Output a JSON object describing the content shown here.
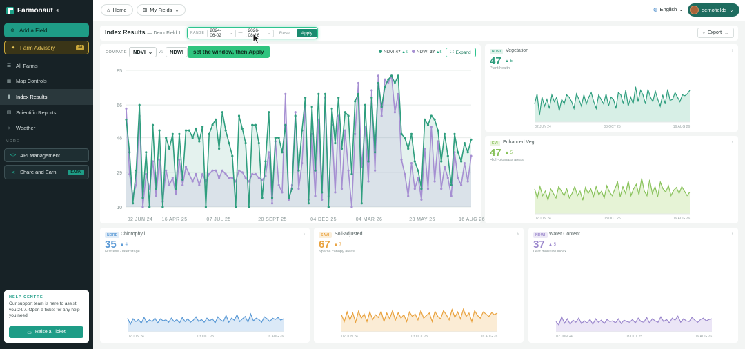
{
  "app": {
    "logo_text": "Farmonaut",
    "logo_sup": "®"
  },
  "sidebar": {
    "add_field": "Add a Field",
    "farm_advisory": "Farm Advisory",
    "ai_badge": "AI",
    "items": [
      {
        "label": "All Farms",
        "icon": "list-icon"
      },
      {
        "label": "Map Controls",
        "icon": "map-icon"
      },
      {
        "label": "Index Results",
        "icon": "bar-chart-icon",
        "active": true
      },
      {
        "label": "Scientific Reports",
        "icon": "document-icon"
      },
      {
        "label": "Weather",
        "icon": "sun-icon"
      }
    ],
    "more_label": "MORE",
    "api_management": "API Management",
    "share_and_earn": "Share and Earn",
    "earn_badge": "EARN",
    "help": {
      "title": "HELP CENTRE",
      "text": "Our support team is here to assist you 24/7. Open a ticket for any help you need.",
      "button": "Raise a Ticket"
    }
  },
  "topbar": {
    "home": "Home",
    "my_fields": "My Fields",
    "language": "English",
    "user": "demofields"
  },
  "header": {
    "title": "Index Results",
    "subtitle": "— DemoField 1",
    "range_label": "RANGE",
    "start_date": "2024-06-02",
    "end_date": "2026-08-16",
    "range_sep": "—",
    "reset": "Reset",
    "apply": "Apply",
    "export": "Export"
  },
  "main_chart": {
    "compare_label": "COMPARE",
    "index_a": "NDVI",
    "vs": "vs",
    "index_b": "NDWI",
    "tooltip": "set the window, then Apply",
    "legend": [
      {
        "name": "NDVI",
        "value": "47",
        "delta": "▲5",
        "color": "#2f9e7e"
      },
      {
        "name": "NDWI",
        "value": "37",
        "delta": "▲5",
        "color": "#a68fd2"
      }
    ],
    "expand": "Expand"
  },
  "chart_data": [
    {
      "type": "line",
      "title": "",
      "ylim": [
        10,
        85
      ],
      "yticks": [
        "85",
        "66",
        "48",
        "29",
        "10"
      ],
      "xticks": [
        "02 JUN 24",
        "16 APR 25",
        "07 JUL 25",
        "20 SEPT 25",
        "04 DEC 25",
        "04 MAR 26",
        "23 MAY 26",
        "16 AUG 26"
      ],
      "grid": true,
      "series": [
        {
          "name": "NDVI",
          "color": "#2f9e7e",
          "values": [
            58,
            40,
            12,
            30,
            66,
            15,
            40,
            10,
            55,
            20,
            52,
            10,
            48,
            42,
            50,
            20,
            50,
            25,
            52,
            52,
            48,
            53,
            46,
            54,
            10,
            50,
            55,
            58,
            42,
            62,
            52,
            45,
            38,
            10,
            60,
            53,
            45,
            10,
            55,
            55,
            45,
            15,
            35,
            62,
            15,
            48,
            48,
            40,
            55,
            15,
            20,
            60,
            30,
            52,
            70,
            12,
            65,
            30,
            72,
            18,
            72,
            10,
            64,
            45,
            70,
            42,
            62,
            60,
            28,
            68,
            72,
            12,
            66,
            35,
            70,
            40,
            78,
            65,
            76,
            80,
            82,
            78,
            82,
            50,
            48,
            42,
            50,
            35,
            30,
            20,
            58,
            55,
            60,
            58,
            52,
            35,
            50,
            38,
            22,
            50,
            40,
            35,
            45,
            40,
            47
          ]
        },
        {
          "name": "NDWI",
          "color": "#a68fd2",
          "values": [
            64,
            28,
            16,
            22,
            60,
            10,
            28,
            20,
            35,
            16,
            36,
            13,
            30,
            22,
            26,
            17,
            36,
            22,
            32,
            28,
            24,
            28,
            22,
            28,
            24,
            28,
            30,
            30,
            26,
            30,
            28,
            26,
            26,
            24,
            30,
            29,
            26,
            24,
            28,
            28,
            26,
            25,
            27,
            40,
            12,
            46,
            22,
            18,
            72,
            14,
            22,
            62,
            20,
            34,
            66,
            14,
            50,
            16,
            58,
            14,
            70,
            16,
            55,
            18,
            60,
            20,
            52,
            30,
            10,
            50,
            78,
            32,
            54,
            24,
            74,
            30,
            82,
            60,
            80,
            78,
            82,
            62,
            72,
            36,
            28,
            16,
            34,
            20,
            26,
            14,
            42,
            20,
            54,
            24,
            46,
            20,
            32,
            26,
            16,
            40,
            26,
            22,
            34,
            24,
            38
          ]
        }
      ]
    },
    {
      "type": "area",
      "title": "Vegetation",
      "xticks": [
        "02 JUN 24",
        "03 OCT 25",
        "16 AUG 26"
      ],
      "series": [
        {
          "name": "NDVI",
          "values": [
            40,
            62,
            15,
            55,
            35,
            50,
            30,
            60,
            45,
            55,
            25,
            50,
            40,
            60,
            55,
            45,
            30,
            62,
            50,
            35,
            60,
            40,
            55,
            65,
            45,
            30,
            60,
            50,
            40,
            62,
            35,
            55,
            50,
            30,
            65,
            60,
            40,
            70,
            35,
            55,
            40,
            78,
            45,
            70,
            60,
            40,
            72,
            55,
            45,
            68,
            50,
            35,
            60,
            40,
            72,
            48,
            50,
            65,
            55,
            45,
            60,
            58,
            62,
            70
          ]
        }
      ]
    },
    {
      "type": "area",
      "title": "Enhanced Veg",
      "xticks": [
        "02 JUN 24",
        "03 OCT 25",
        "16 AUG 26"
      ],
      "series": [
        {
          "name": "EVI",
          "values": [
            55,
            35,
            60,
            40,
            50,
            30,
            55,
            45,
            35,
            60,
            50,
            40,
            55,
            35,
            45,
            60,
            40,
            50,
            30,
            58,
            45,
            55,
            38,
            60,
            42,
            50,
            35,
            62,
            48,
            40,
            55,
            70,
            38,
            60,
            45,
            72,
            40,
            55,
            65,
            42,
            78,
            50,
            40,
            75,
            45,
            60,
            38,
            70,
            55,
            48,
            62,
            40,
            52,
            58,
            45,
            60,
            50,
            40,
            48
          ]
        }
      ]
    },
    {
      "type": "area",
      "title": "Chlorophyll",
      "xticks": [
        "02 JUN 24",
        "03 OCT 25",
        "16 AUG 26"
      ],
      "series": [
        {
          "name": "NDRE",
          "values": [
            40,
            22,
            38,
            30,
            36,
            25,
            42,
            28,
            35,
            30,
            40,
            26,
            38,
            32,
            35,
            28,
            40,
            30,
            36,
            26,
            42,
            30,
            38,
            28,
            34,
            44,
            30,
            36,
            28,
            40,
            32,
            38,
            26,
            44,
            35,
            30,
            48,
            28,
            40,
            34,
            50,
            30,
            38,
            45,
            28,
            52,
            32,
            40,
            36,
            28,
            44,
            38,
            30,
            40,
            36,
            42,
            34,
            38
          ]
        }
      ]
    },
    {
      "type": "area",
      "title": "Soil-adjusted",
      "xticks": [
        "02 JUN 24",
        "03 OCT 25",
        "16 AUG 26"
      ],
      "series": [
        {
          "name": "SAVI",
          "values": [
            50,
            30,
            58,
            35,
            55,
            28,
            60,
            40,
            52,
            30,
            58,
            36,
            50,
            42,
            60,
            30,
            55,
            38,
            62,
            34,
            56,
            40,
            50,
            30,
            58,
            45,
            52,
            35,
            62,
            40,
            48,
            55,
            30,
            60,
            45,
            38,
            62,
            50,
            35,
            65,
            42,
            58,
            38,
            66,
            45,
            55,
            30,
            62,
            48,
            40,
            58,
            52,
            45,
            56,
            50,
            55
          ]
        }
      ]
    },
    {
      "type": "area",
      "title": "Water Content",
      "xticks": [
        "02 JUN 24",
        "03 OCT 25",
        "16 AUG 26"
      ],
      "series": [
        {
          "name": "NDWI",
          "values": [
            30,
            20,
            44,
            25,
            38,
            22,
            34,
            28,
            40,
            24,
            32,
            26,
            36,
            22,
            38,
            28,
            34,
            24,
            36,
            30,
            32,
            26,
            38,
            24,
            34,
            30,
            28,
            36,
            26,
            40,
            30,
            28,
            42,
            26,
            38,
            32,
            28,
            44,
            30,
            36,
            26,
            40,
            34,
            46,
            28,
            38,
            32,
            30,
            42,
            34,
            28,
            36,
            40,
            32,
            36,
            38
          ]
        }
      ]
    }
  ],
  "mini_cards": [
    {
      "badge": "NDVI",
      "name": "Vegetation",
      "value": "47",
      "delta": "▲ 5",
      "desc": "Plant health",
      "color": "#2f9e7e",
      "fill": "#d7efe6",
      "badge_bg": "#e3f3ec"
    },
    {
      "badge": "EVI",
      "name": "Enhanced Veg",
      "value": "47",
      "delta": "▲ 5",
      "desc": "High-biomass areas",
      "color": "#88c25a",
      "fill": "#e6f3d6",
      "badge_bg": "#ebf5de"
    },
    {
      "badge": "NDRE",
      "name": "Chlorophyll",
      "value": "35",
      "delta": "▲ 4",
      "desc": "N stress · later stage",
      "color": "#5b9ad6",
      "fill": "#dbe9f7",
      "badge_bg": "#e2edf8"
    },
    {
      "badge": "SAVI",
      "name": "Soil-adjusted",
      "value": "67",
      "delta": "▲ 7",
      "desc": "Sparse canopy areas",
      "color": "#e9a23e",
      "fill": "#fbecd5",
      "badge_bg": "#fbeed9"
    },
    {
      "badge": "NDWI",
      "name": "Water Content",
      "value": "37",
      "delta": "▲ 5",
      "desc": "Leaf moisture index",
      "color": "#9a86cc",
      "fill": "#ebe5f6",
      "badge_bg": "#ece8f6"
    }
  ]
}
